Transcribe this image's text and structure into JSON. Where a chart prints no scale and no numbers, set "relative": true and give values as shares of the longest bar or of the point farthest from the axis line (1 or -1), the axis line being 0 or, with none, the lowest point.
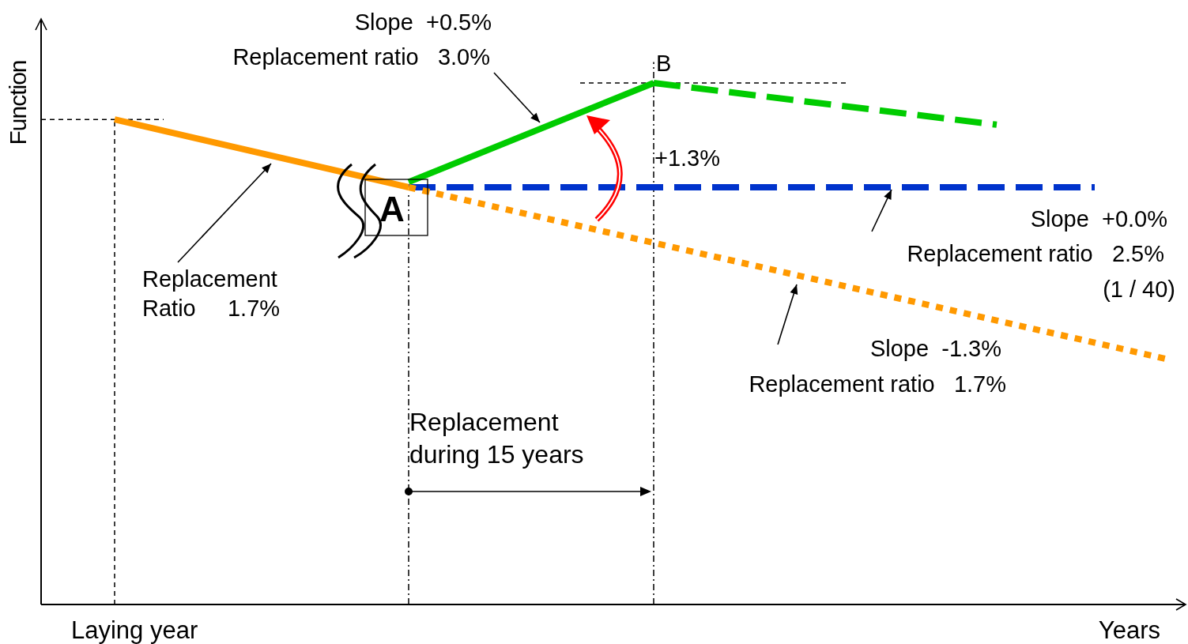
{
  "chart_data": {
    "type": "line",
    "relative": true,
    "marker": "none",
    "grid": true,
    "ylabel": "Function",
    "xlabel": "Years",
    "categories": [
      null,
      null,
      null,
      null,
      null,
      null,
      null,
      null,
      null,
      null,
      null,
      null,
      null,
      null,
      null,
      null,
      null,
      null,
      null,
      null,
      null,
      null,
      null,
      null,
      null,
      null,
      null,
      null,
      null,
      null,
      null,
      null,
      null,
      null,
      null,
      null,
      null,
      null,
      null,
      null,
      null,
      null,
      null,
      null,
      null,
      null,
      null
    ],
    "series": [
      {
        "type": "line",
        "color": "#ff9900",
        "line_style": "solid",
        "values": [
          null,
          null,
          null,
          0.93,
          null,
          null,
          null,
          null,
          null,
          null,
          null,
          null,
          null,
          null,
          null,
          0.8,
          null,
          null,
          null,
          null,
          null,
          null,
          null,
          null,
          null,
          null,
          null,
          null,
          null,
          null,
          null,
          null,
          null,
          null,
          null,
          null,
          null,
          null,
          null,
          null,
          null,
          null,
          null,
          null,
          null,
          null,
          null
        ]
      },
      {
        "type": "line",
        "color": "#00cc00",
        "line_style": "solid",
        "values": [
          null,
          null,
          null,
          null,
          null,
          null,
          null,
          null,
          null,
          null,
          null,
          null,
          null,
          null,
          null,
          0.81,
          null,
          null,
          null,
          null,
          null,
          null,
          null,
          null,
          null,
          1.0,
          null,
          null,
          null,
          null,
          null,
          null,
          null,
          null,
          null,
          null,
          null,
          null,
          null,
          null,
          null,
          null,
          null,
          null,
          null,
          null,
          null
        ]
      },
      {
        "type": "line",
        "color": "#00cc00",
        "line_style": "dashed",
        "values": [
          null,
          null,
          null,
          null,
          null,
          null,
          null,
          null,
          null,
          null,
          null,
          null,
          null,
          null,
          null,
          null,
          null,
          null,
          null,
          null,
          null,
          null,
          null,
          null,
          null,
          1.0,
          null,
          null,
          null,
          null,
          null,
          null,
          null,
          null,
          null,
          null,
          null,
          null,
          null,
          0.92,
          null,
          null,
          null,
          null,
          null,
          null,
          null
        ]
      },
      {
        "type": "line",
        "color": "#0033cc",
        "line_style": "dashed",
        "values": [
          null,
          null,
          null,
          null,
          null,
          null,
          null,
          null,
          null,
          null,
          null,
          null,
          null,
          null,
          null,
          0.8,
          null,
          null,
          null,
          null,
          null,
          null,
          null,
          null,
          null,
          null,
          null,
          null,
          null,
          null,
          null,
          null,
          null,
          null,
          null,
          null,
          null,
          null,
          null,
          null,
          null,
          null,
          null,
          0.8,
          null,
          null,
          null
        ]
      },
      {
        "type": "line",
        "color": "#ff9900",
        "line_style": "dotted",
        "values": [
          null,
          null,
          null,
          null,
          null,
          null,
          null,
          null,
          null,
          null,
          null,
          null,
          null,
          null,
          null,
          0.8,
          null,
          null,
          null,
          null,
          null,
          null,
          null,
          null,
          null,
          null,
          null,
          null,
          null,
          null,
          null,
          null,
          null,
          null,
          null,
          null,
          null,
          null,
          null,
          null,
          null,
          null,
          null,
          null,
          null,
          null,
          0.47
        ]
      }
    ],
    "annotations": [
      "Slope  +0.5%",
      "Replacement ratio   3.0%",
      "B",
      "+1.3%",
      "A",
      "Slope  +0.0%",
      "Replacement ratio   2.5%",
      "(1 / 40)",
      "Slope  -1.3%",
      "Replacement ratio   1.7%",
      "Replacement",
      "Ratio     1.7%",
      "Replacement",
      "during 15 years",
      "Laying year"
    ]
  }
}
